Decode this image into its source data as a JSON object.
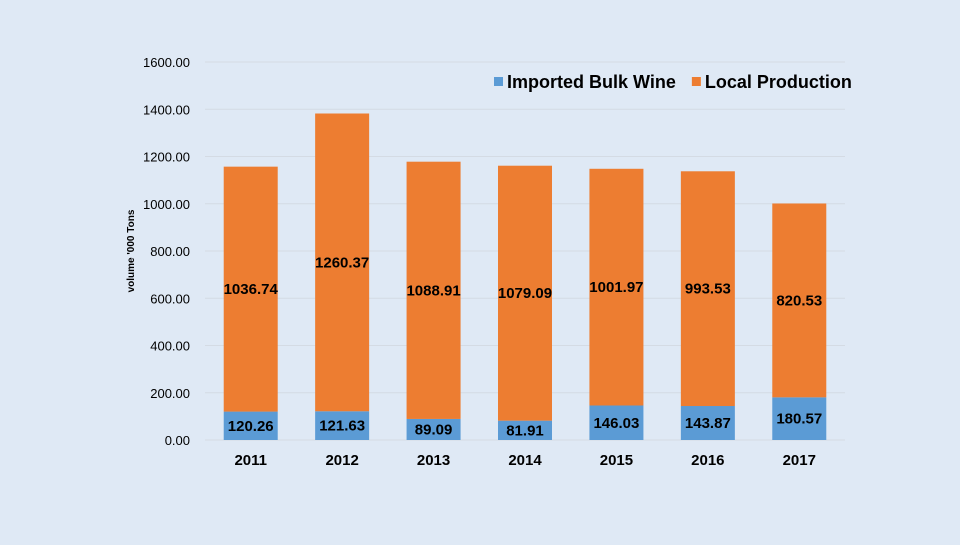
{
  "chart_data": {
    "type": "bar",
    "stacked": true,
    "categories": [
      "2011",
      "2012",
      "2013",
      "2014",
      "2015",
      "2016",
      "2017"
    ],
    "series": [
      {
        "name": "Imported Bulk Wine",
        "color": "#5b9bd5",
        "values": [
          120.26,
          121.63,
          89.09,
          81.91,
          146.03,
          143.87,
          180.57
        ],
        "labels": [
          "120.26",
          "121.63",
          "89.09",
          "81.91",
          "146.03",
          "143.87",
          "180.57"
        ]
      },
      {
        "name": "Local Production",
        "color": "#ed7d31",
        "values": [
          1036.74,
          1260.37,
          1088.91,
          1079.09,
          1001.97,
          993.53,
          820.53
        ],
        "labels": [
          "1036.74",
          "1260.37",
          "1088.91",
          "1079.09",
          "1001.97",
          "993.53",
          "820.53"
        ]
      }
    ],
    "title": "",
    "xlabel": "",
    "ylabel": "volume '000 Tons",
    "ylim": [
      0,
      1600
    ],
    "yticks": [
      0,
      200,
      400,
      600,
      800,
      1000,
      1200,
      1400,
      1600
    ],
    "ytick_labels": [
      "0.00",
      "200.00",
      "400.00",
      "600.00",
      "800.00",
      "1000.00",
      "1200.00",
      "1400.00",
      "1600.00"
    ],
    "grid": true,
    "legend": "top-right"
  }
}
